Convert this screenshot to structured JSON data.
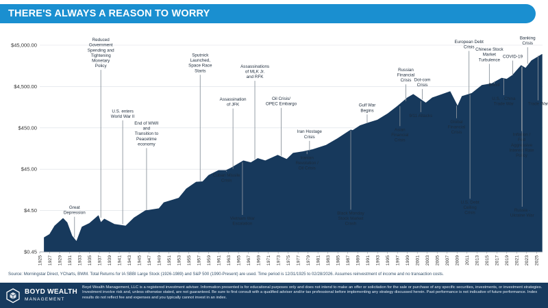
{
  "header": {
    "title": "THERE'S ALWAYS A REASON TO WORRY"
  },
  "chart_data": {
    "type": "area",
    "title": "THERE'S ALWAYS A REASON TO WORRY",
    "y_scale": "log",
    "ylim": [
      0.45,
      45000
    ],
    "y_ticks": [
      0.45,
      4.5,
      45,
      450,
      4500,
      45000
    ],
    "y_tick_labels": [
      "$0.45",
      "$4.50",
      "$45.00",
      "$450.00",
      "$4,500.00",
      "$45,000.00"
    ],
    "xlim": [
      1925,
      2026.2
    ],
    "x_ticks": [
      1925,
      1927,
      1929,
      1931,
      1933,
      1935,
      1937,
      1939,
      1941,
      1943,
      1945,
      1947,
      1949,
      1951,
      1953,
      1955,
      1957,
      1959,
      1961,
      1963,
      1965,
      1967,
      1969,
      1971,
      1973,
      1975,
      1977,
      1979,
      1981,
      1983,
      1985,
      1987,
      1989,
      1991,
      1993,
      1995,
      1997,
      1999,
      2001,
      2003,
      2005,
      2007,
      2009,
      2011,
      2013,
      2015,
      2017,
      2019,
      2021,
      2023,
      2025
    ],
    "series": [
      {
        "color": "#17395c",
        "x": [
          1925.9,
          1927,
          1928,
          1929.7,
          1930.5,
          1931.5,
          1932.4,
          1933.5,
          1935,
          1936.8,
          1937.3,
          1938,
          1940,
          1942.3,
          1944,
          1946.3,
          1947,
          1949,
          1950,
          1953,
          1954.5,
          1956.5,
          1957.8,
          1959,
          1961,
          1962.5,
          1963.5,
          1966,
          1967.5,
          1968.9,
          1970.4,
          1972.9,
          1974.7,
          1976,
          1978,
          1980,
          1982.6,
          1985,
          1987.6,
          1988,
          1989.5,
          1991,
          1993,
          1995,
          1997,
          1999,
          2000.2,
          2002.7,
          2004,
          2007.6,
          2009.1,
          2010,
          2012,
          2014,
          2016,
          2018,
          2019,
          2020.2,
          2021.9,
          2022.8,
          2024,
          2026.1
        ],
        "y": [
          1.0,
          1.2,
          1.9,
          2.9,
          2.3,
          1.1,
          0.8,
          1.8,
          2.2,
          3.4,
          2.3,
          2.8,
          2.1,
          1.9,
          3.0,
          4.5,
          4.6,
          5.0,
          7.0,
          9.0,
          15.0,
          22.0,
          22.5,
          32.0,
          42.0,
          42.0,
          48.0,
          72.0,
          65.0,
          82.0,
          72.0,
          98.0,
          78.0,
          110.0,
          120.0,
          135.0,
          170.0,
          250.0,
          400.0,
          390.0,
          510.0,
          590.0,
          700.0,
          980.0,
          1500.0,
          2400.0,
          2900.0,
          1800.0,
          2400.0,
          3400.0,
          1500.0,
          2600.0,
          3100.0,
          4800.0,
          5300.0,
          7200.0,
          6800.0,
          8500.0,
          14500.0,
          12500.0,
          19000.0,
          27000.0
        ]
      }
    ],
    "annotations": [
      {
        "label": "Great Depression",
        "year": 1932,
        "label_y": 3.5,
        "line_y": 1.0
      },
      {
        "label": "Reduced Government Spending and Tightening Monetary Policy",
        "year": 1937.3,
        "label_y": 12500,
        "line_y": 3.0
      },
      {
        "label": "U.S. enters World War II",
        "year": 1941.7,
        "label_y": 750,
        "line_y": 2.1
      },
      {
        "label": "End of WWII and Transition to Peacetime economy",
        "year": 1946.5,
        "label_y": 160,
        "line_y": 4.6
      },
      {
        "label": "Sputnick Launched, Space Race Starts",
        "year": 1957.3,
        "label_y": 9500,
        "line_y": 23
      },
      {
        "label": "Assassination of JFK",
        "year": 1963.9,
        "label_y": 1450,
        "line_y": 46
      },
      {
        "label": "Cuban Missile Crisis",
        "year": 1962.6,
        "label_y": 21,
        "line_y": 41
      },
      {
        "label": "Assassinations of MLK Jr. and RFK",
        "year": 1968.3,
        "label_y": 6800,
        "line_y": 78
      },
      {
        "label": "Vietnam War Escalation",
        "year": 1965.8,
        "label_y": 1.9,
        "line_y": 66
      },
      {
        "label": "Oil Crisis/ OPEC Embargo",
        "year": 1973.6,
        "label_y": 1500,
        "line_y": 95
      },
      {
        "label": "Iran Hostage Crisis",
        "year": 1979.3,
        "label_y": 240,
        "line_y": 125
      },
      {
        "label": "Iranian Revolution / Oil Crisis",
        "year": 1978.8,
        "label_y": 42,
        "line_y": 122
      },
      {
        "label": "Gulf War Begins",
        "year": 1990.9,
        "label_y": 1040,
        "line_y": 580
      },
      {
        "label": "Black Monday Stock Market Crash",
        "year": 1987.6,
        "label_y": 1.9,
        "line_y": 390
      },
      {
        "label": "Russian Financial Crisis",
        "year": 1998.7,
        "label_y": 5600,
        "line_y": 2000
      },
      {
        "label": "Asian Financial Crisis",
        "year": 1997.5,
        "label_y": 200,
        "line_y": 1500
      },
      {
        "label": "Dot-com Crisis",
        "year": 2002,
        "label_y": 4300,
        "line_y": 2200
      },
      {
        "label": "9/11 Attacks",
        "year": 2001.7,
        "label_y": 780,
        "line_y": 2000
      },
      {
        "label": "European Debt Crisis",
        "year": 2011.4,
        "label_y": 36000,
        "line_y": 3000
      },
      {
        "label": "Global Financial Crisis",
        "year": 2008.9,
        "label_y": 310,
        "line_y": 1550
      },
      {
        "label": "U.S. Debt Ceiling Crisis",
        "year": 2011.6,
        "label_y": 3.5,
        "line_y": 2900
      },
      {
        "label": "Chinese Stock Market Turbulence",
        "year": 2015.5,
        "label_y": 17500,
        "line_y": 5200
      },
      {
        "label": "Brexit",
        "year": 2016.5,
        "label_y": 4300,
        "line_y": 5300
      },
      {
        "label": "U.S. - China Trade War",
        "year": 2018.4,
        "label_y": 1500,
        "line_y": 7000
      },
      {
        "label": "COVID-19",
        "year": 2020.2,
        "label_y": 21000,
        "line_y": 8500
      },
      {
        "label": "Banking Crisis",
        "year": 2023.2,
        "label_y": 44000,
        "line_y": 16000
      },
      {
        "label": "Trade War",
        "year": 2025.3,
        "label_y": 1500,
        "line_y": 25000
      },
      {
        "label": "Inflation / Fed Aggressive Interest Rate Policy",
        "year": 2022,
        "label_y": 85,
        "line_y": 13500
      },
      {
        "label": "Russia - Ukraine War",
        "year": 2022.1,
        "label_y": 3.0,
        "line_y": 13500
      }
    ]
  },
  "source": "Source: Morningstar Direct, YCharts, BWM. Total Returns for IA SBBI Large Stock (1926-1989) and S&P 500 (1990-Present) are used. Time period is 12/31/1925 to 02/28/2026. Assumes reinvestment of income and no transaction costs.",
  "footer": {
    "logo_name": "BOYD WEALTH",
    "logo_sub": "MANAGEMENT",
    "disclaimer": "Boyd Wealth Management, LLC is a registered investment adviser. Information presented is for educational purposes only and does not intend to make an offer or solicitation for the sale or purchase of any specific securities, investments, or investment strategies. Investment involve risk and, unless otherwise stated, are not guaranteed. Be sure to first consult with a qualified adviser and/or tax professional before implementing any strategy discussed herein. Past performance is not indicative of future performance. Index results do not reflect fee and expenses and you typically cannot invest in an index."
  }
}
